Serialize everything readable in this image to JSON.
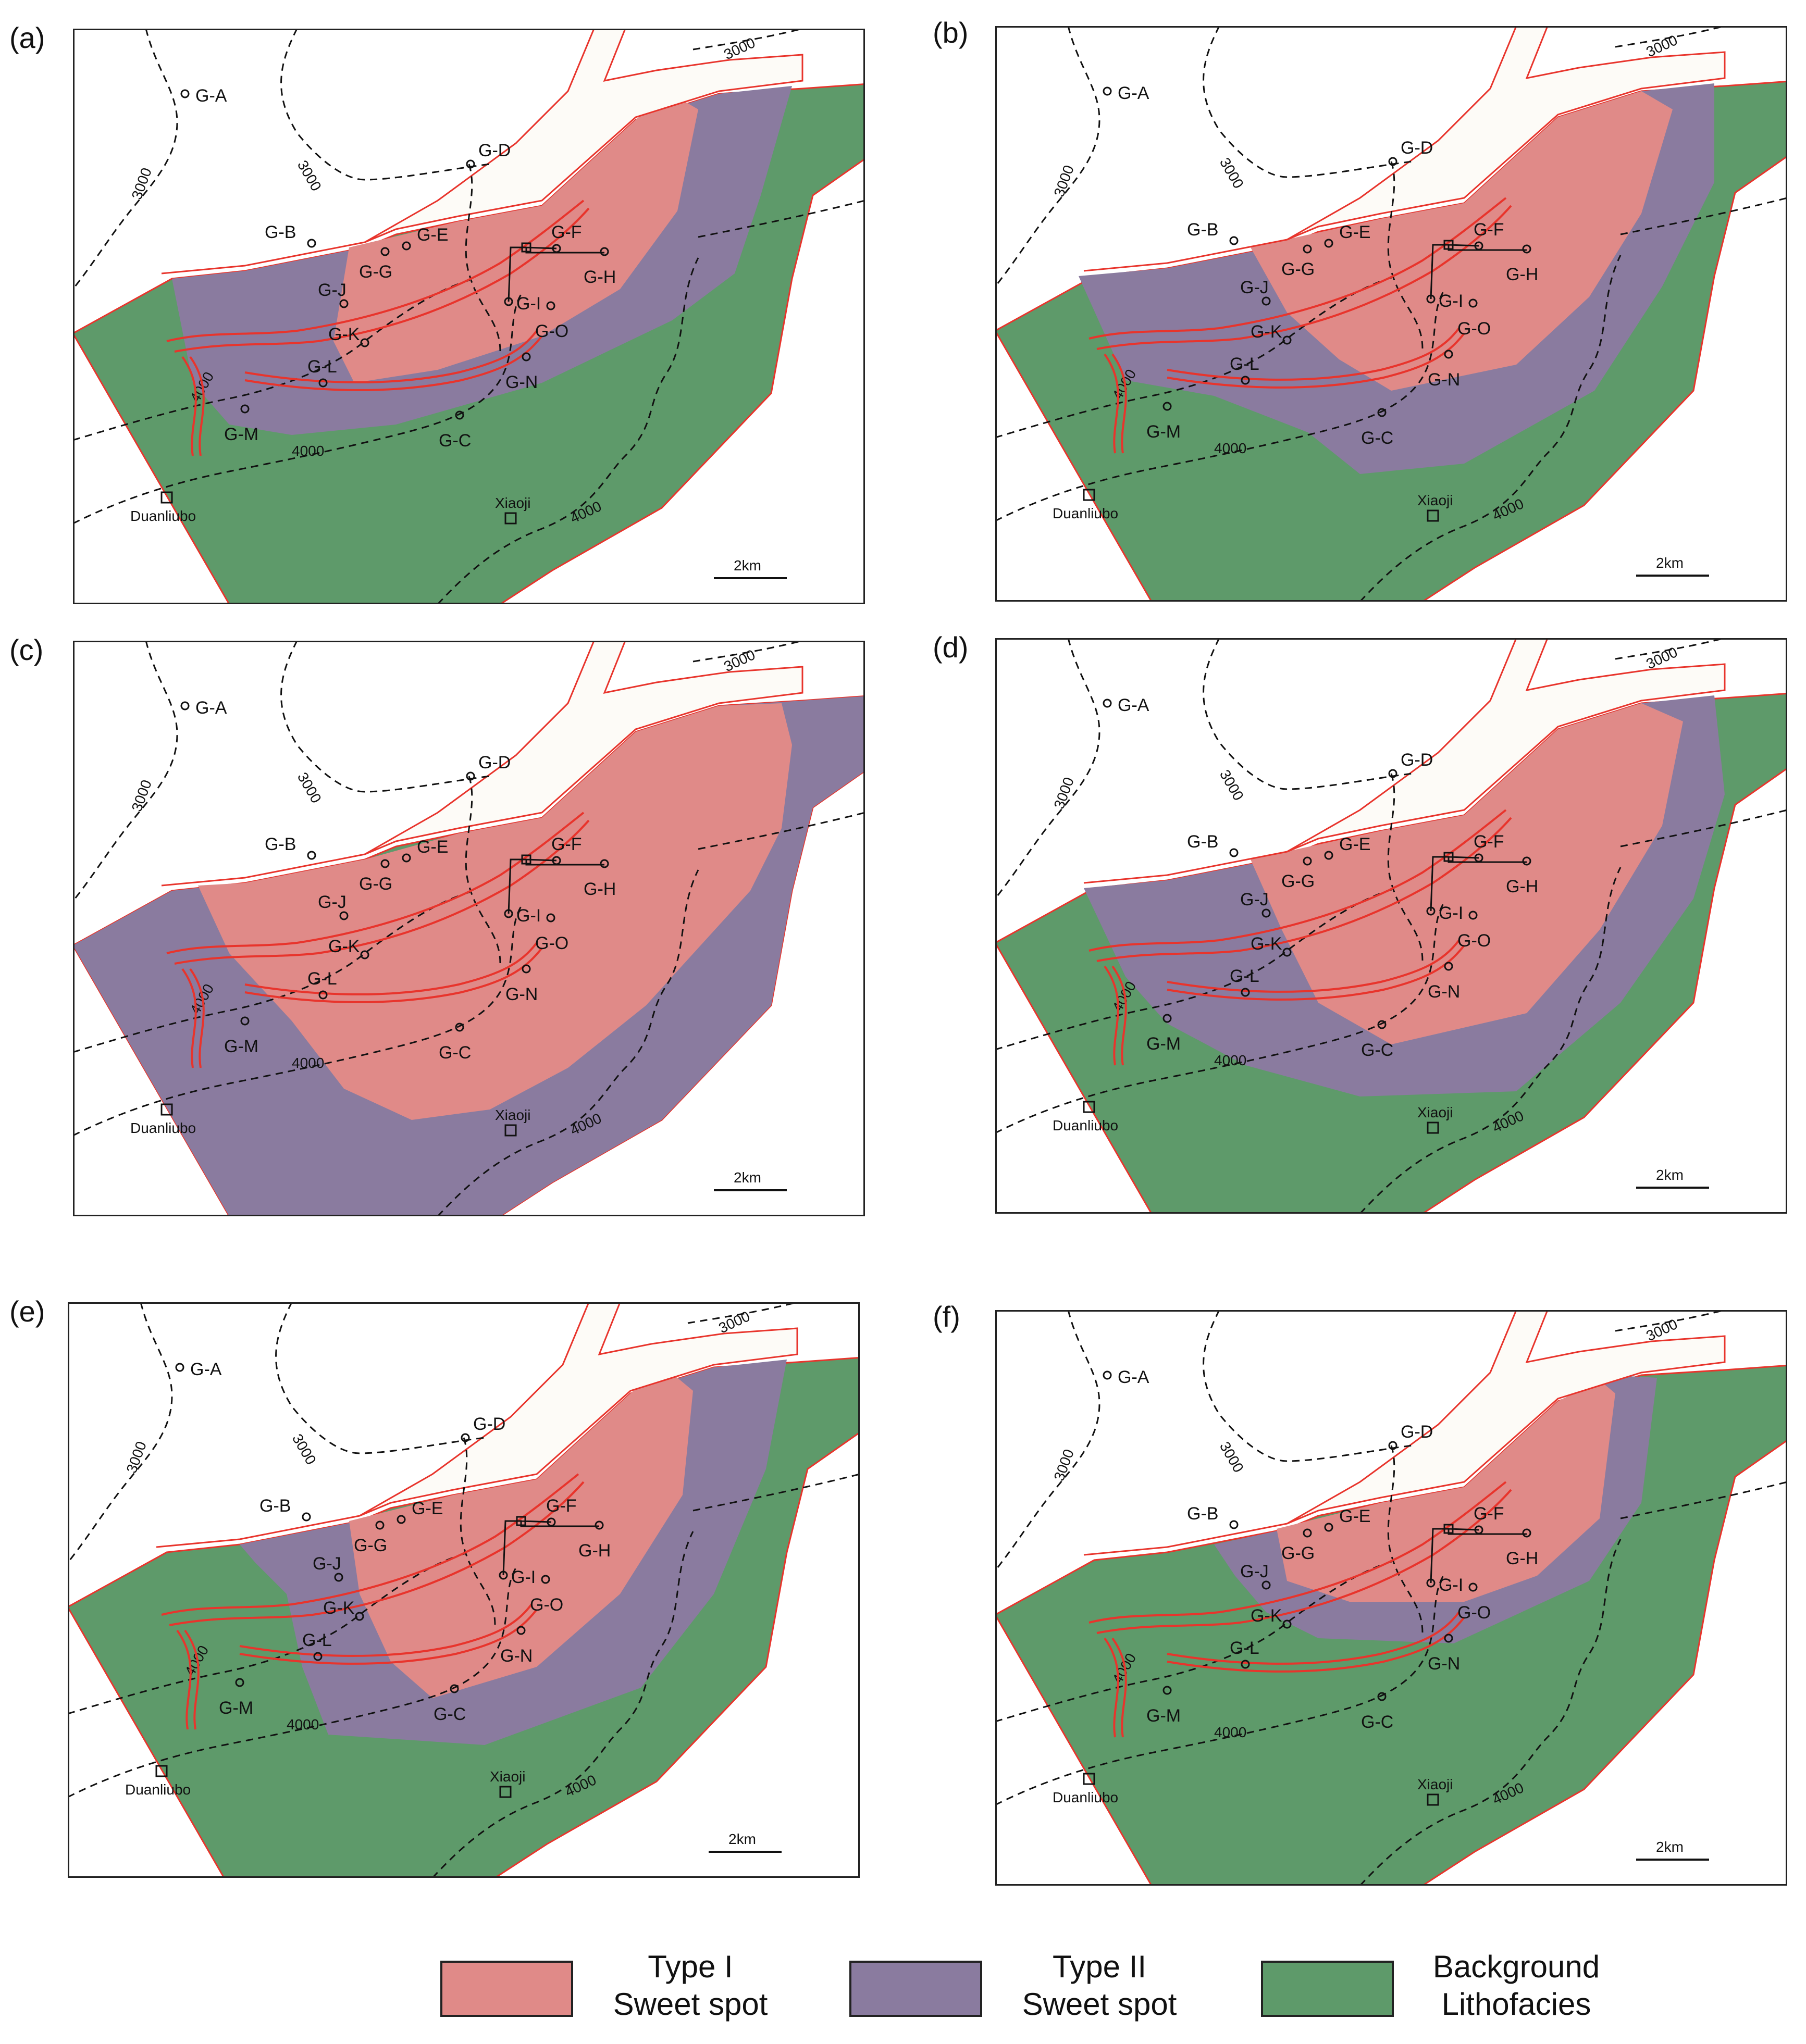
{
  "panels": [
    {
      "label": "(a)",
      "zones": {
        "type1": "a",
        "type2": "a",
        "background": "a"
      }
    },
    {
      "label": "(b)",
      "zones": {
        "type1": "b",
        "type2": "b",
        "background": "b"
      }
    },
    {
      "label": "(c)",
      "zones": {
        "type1": "c",
        "type2": "c",
        "background": "c"
      }
    },
    {
      "label": "(d)",
      "zones": {
        "type1": "d",
        "type2": "d",
        "background": "d"
      }
    },
    {
      "label": "(e)",
      "zones": {
        "type1": "e",
        "type2": "e",
        "background": "e"
      }
    },
    {
      "label": "(f)",
      "zones": {
        "type1": "f",
        "type2": "f",
        "background": "f"
      }
    }
  ],
  "wells": [
    "G-A",
    "G-B",
    "G-C",
    "G-D",
    "G-E",
    "G-F",
    "G-G",
    "G-H",
    "G-I",
    "G-J",
    "G-K",
    "G-L",
    "G-M",
    "G-N",
    "G-O"
  ],
  "towns": [
    "Duanliubo",
    "Xiaoji"
  ],
  "contours": {
    "c3000": "3000",
    "c4000": "4000"
  },
  "scale_bar": "2km",
  "legend": {
    "type1_line1": "Type I",
    "type1_line2": "Sweet spot",
    "type2_line1": "Type II",
    "type2_line2": "Sweet spot",
    "bg_line1": "Background",
    "bg_line2": "Lithofacies"
  },
  "colors": {
    "type1": "#e08a88",
    "type2": "#8a7b9f",
    "background": "#5e9a6a",
    "fault": "#e8342c",
    "frame": "#222222",
    "white_band": "#fdfbf7"
  }
}
